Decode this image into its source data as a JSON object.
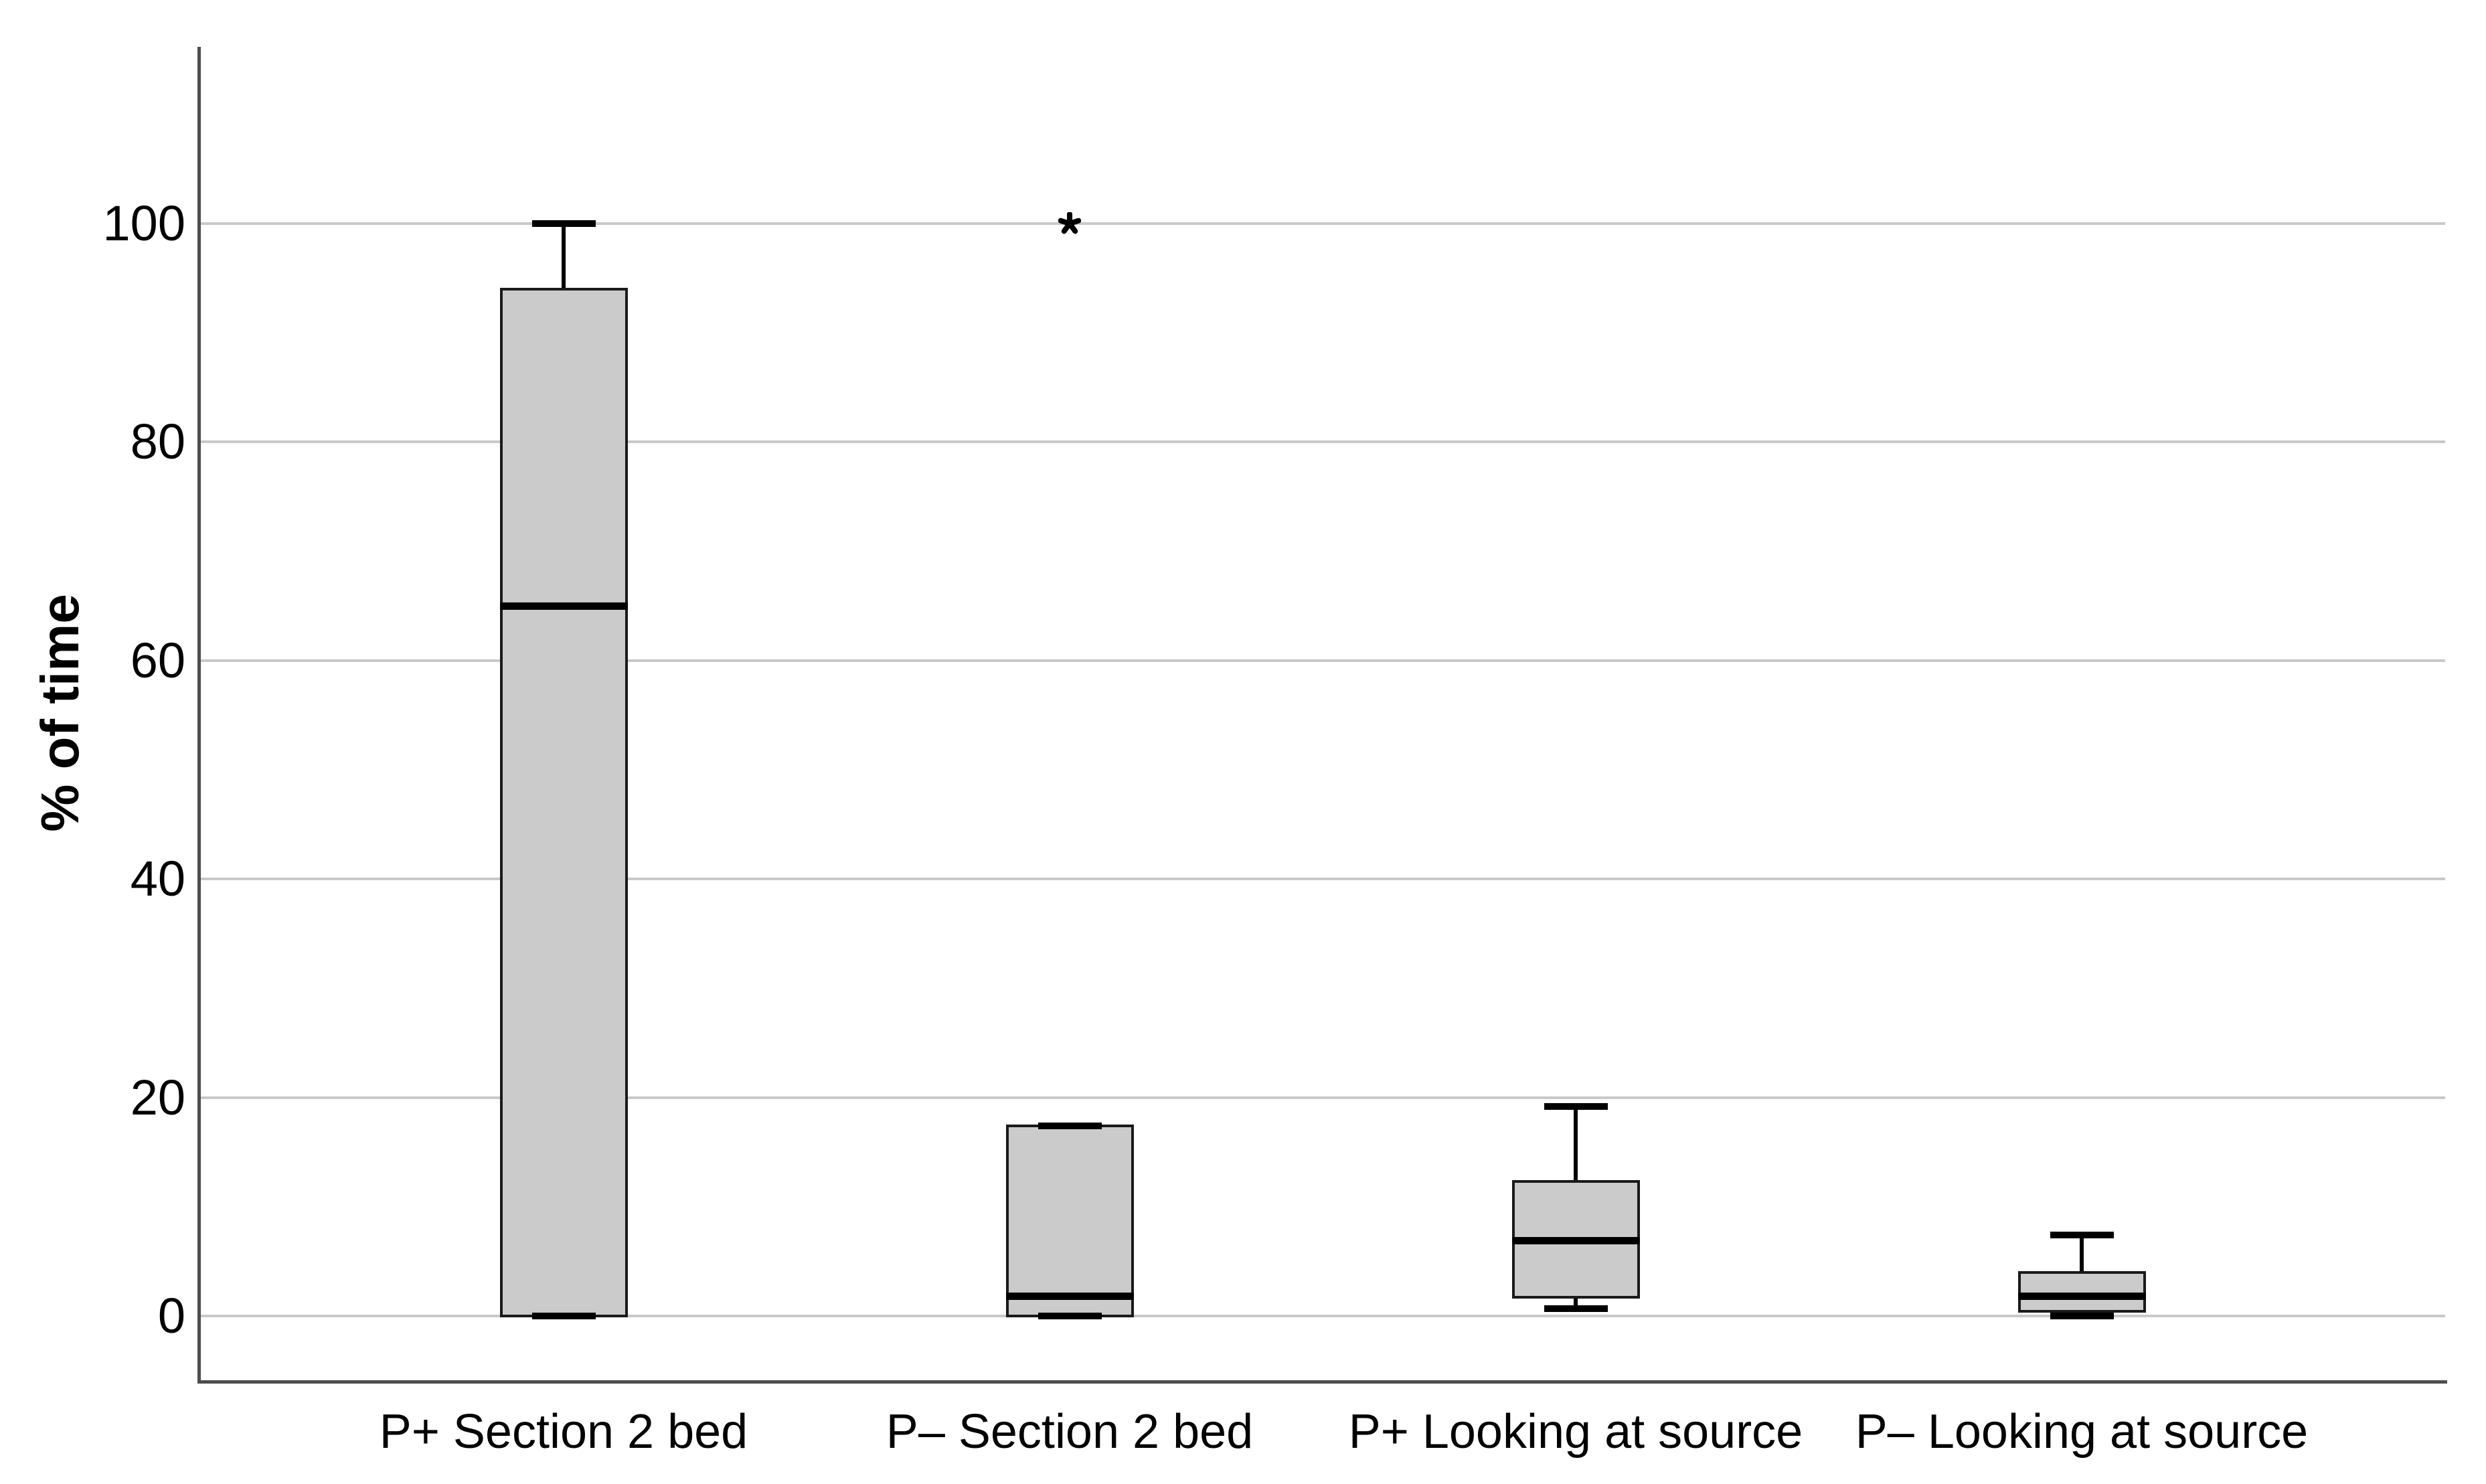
{
  "figure": {
    "background": "#ffffff"
  },
  "chart_data": {
    "type": "boxplot",
    "title": "",
    "xlabel": "",
    "ylabel": "% of time",
    "yticks": [
      0,
      20,
      40,
      60,
      80,
      100
    ],
    "ylim": [
      -6,
      116
    ],
    "grid": "horizontal",
    "legend": "none",
    "categories": [
      "P+ Section 2 bed",
      "P– Section 2 bed",
      "P+ Looking at source",
      "P– Looking at source"
    ],
    "boxes": [
      {
        "category": "P+ Section 2 bed",
        "whisker_low": 0,
        "q1": 0,
        "median": 65,
        "q3": 94,
        "whisker_high": 100,
        "outliers": []
      },
      {
        "category": "P– Section 2 bed",
        "whisker_low": 0,
        "q1": 0,
        "median": 1.8,
        "q3": 17.4,
        "whisker_high": 17.4,
        "outliers": [
          100
        ]
      },
      {
        "category": "P+ Looking at source",
        "whisker_low": 0.7,
        "q1": 1.7,
        "median": 6.9,
        "q3": 12.3,
        "whisker_high": 19.2,
        "outliers": []
      },
      {
        "category": "P– Looking at source",
        "whisker_low": 0,
        "q1": 0.4,
        "median": 1.8,
        "q3": 4.0,
        "whisker_high": 7.4,
        "outliers": []
      }
    ],
    "outlier_marker": "*",
    "colors": {
      "box_fill": "#cbcbcb",
      "box_border": "#1a1a1a",
      "median": "#000000",
      "whisker": "#000000",
      "gridline": "#c9c9c9",
      "axis": "#4d4d4d",
      "text": "#000000",
      "background": "#ffffff"
    }
  }
}
